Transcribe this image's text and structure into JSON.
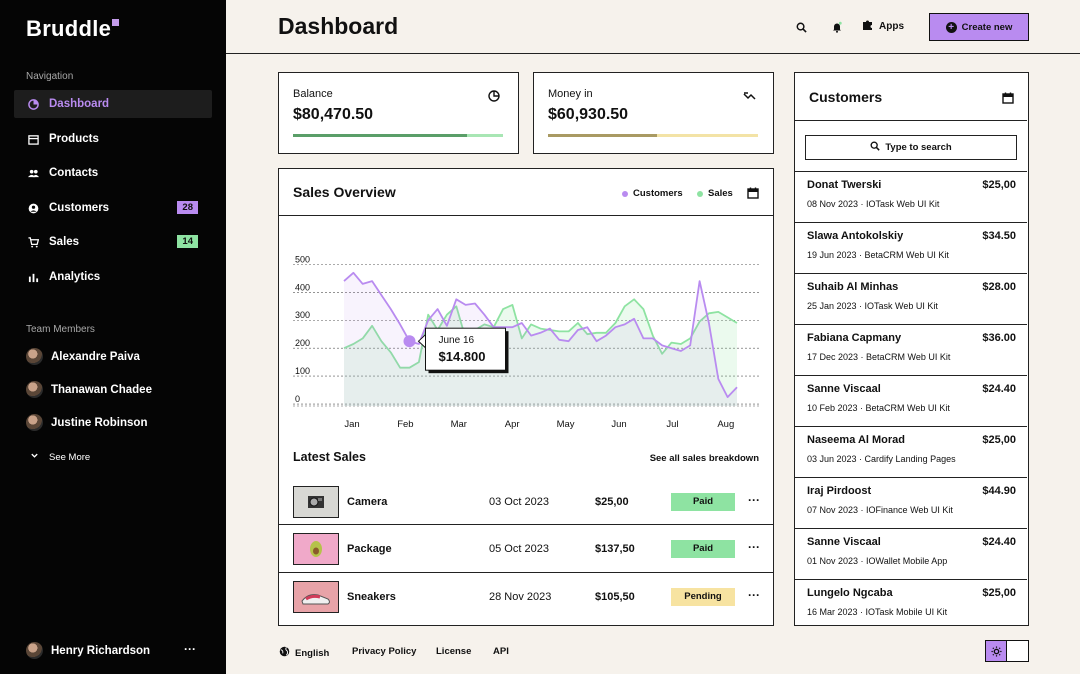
{
  "app": {
    "logo": "Bruddle"
  },
  "sidebar": {
    "nav_heading": "Navigation",
    "items": [
      {
        "label": "Dashboard",
        "icon": "dashboard-icon",
        "active": true
      },
      {
        "label": "Products",
        "icon": "products-icon"
      },
      {
        "label": "Contacts",
        "icon": "contacts-icon"
      },
      {
        "label": "Customers",
        "icon": "customers-icon",
        "badge": "28",
        "badge_color": "#b98bf0"
      },
      {
        "label": "Sales",
        "icon": "cart-icon",
        "badge": "14",
        "badge_color": "#8ee3a2"
      },
      {
        "label": "Analytics",
        "icon": "analytics-icon"
      }
    ],
    "team_heading": "Team Members",
    "members": [
      "Alexandre Paiva",
      "Thanawan Chadee",
      "Justine Robinson"
    ],
    "see_more": "See More",
    "current_user": "Henry Richardson"
  },
  "header": {
    "title": "Dashboard",
    "apps_label": "Apps",
    "create_label": "Create new"
  },
  "stats": [
    {
      "label": "Balance",
      "value": "$80,470.50",
      "icon": "pie-chart-icon",
      "progress": 0.83,
      "fill_color": "#5a9e68",
      "track_color": "#a8e6b4"
    },
    {
      "label": "Money in",
      "value": "$60,930.50",
      "icon": "trend-icon",
      "progress": 0.52,
      "fill_color": "#a99a63",
      "track_color": "#f3e3a6"
    }
  ],
  "sales_overview": {
    "title": "Sales Overview",
    "legend_customers": "Customers",
    "legend_sales": "Sales",
    "tooltip_date": "June 16",
    "tooltip_value": "$14.800"
  },
  "chart_data": {
    "type": "line",
    "yticks": [
      500,
      400,
      300,
      200,
      100,
      0
    ],
    "ylim": [
      -50,
      530
    ],
    "xticks": [
      "Jan",
      "Feb",
      "Mar",
      "Apr",
      "May",
      "Jun",
      "Jul",
      "Aug"
    ],
    "series": [
      {
        "name": "Customers",
        "color": "#b98bf0",
        "values": [
          440,
          470,
          430,
          440,
          390,
          340,
          285,
          225,
          215,
          300,
          340,
          280,
          375,
          355,
          360,
          320,
          275,
          275,
          275,
          290,
          245,
          255,
          270,
          230,
          225,
          265,
          275,
          225,
          245,
          275,
          285,
          305,
          235,
          235,
          210,
          200,
          190,
          210,
          440,
          290,
          90,
          25,
          60
        ]
      },
      {
        "name": "Sales",
        "color": "#8ee3a2",
        "values": [
          200,
          215,
          235,
          280,
          225,
          185,
          130,
          130,
          150,
          320,
          265,
          320,
          350,
          235,
          265,
          285,
          275,
          340,
          355,
          235,
          285,
          270,
          265,
          260,
          260,
          290,
          250,
          255,
          255,
          290,
          350,
          375,
          340,
          245,
          180,
          220,
          215,
          235,
          295,
          325,
          330,
          310,
          290
        ]
      }
    ]
  },
  "latest_sales": {
    "title": "Latest Sales",
    "see_all": "See all sales breakdown",
    "rows": [
      {
        "name": "Camera",
        "date": "03 Oct 2023",
        "amount": "$25,00",
        "status": "Paid",
        "status_color": "#8ee3a2",
        "thumb_color": "#d8d8d4"
      },
      {
        "name": "Package",
        "date": "05 Oct 2023",
        "amount": "$137,50",
        "status": "Paid",
        "status_color": "#8ee3a2",
        "thumb_color": "#f0a9c9"
      },
      {
        "name": "Sneakers",
        "date": "28 Nov 2023",
        "amount": "$105,50",
        "status": "Pending",
        "status_color": "#f7e3a1",
        "thumb_color": "#e8a3a8"
      }
    ]
  },
  "customers": {
    "title": "Customers",
    "search_placeholder": "Type to search",
    "rows": [
      {
        "name": "Donat Twerski",
        "amount": "$25,00",
        "date": "08 Nov 2023",
        "product": "IOTask Web UI Kit"
      },
      {
        "name": "Slawa Antokolskiy",
        "amount": "$34.50",
        "date": "19 Jun 2023",
        "product": "BetaCRM Web UI Kit"
      },
      {
        "name": "Suhaib Al Minhas",
        "amount": "$28.00",
        "date": "25 Jan 2023",
        "product": "IOTask Web UI Kit"
      },
      {
        "name": "Fabiana Capmany",
        "amount": "$36.00",
        "date": "17 Dec 2023",
        "product": "BetaCRM Web UI Kit"
      },
      {
        "name": "Sanne Viscaal",
        "amount": "$24.40",
        "date": "10 Feb 2023",
        "product": "BetaCRM Web UI Kit"
      },
      {
        "name": "Naseema Al Morad",
        "amount": "$25,00",
        "date": "03 Jun 2023",
        "product": "Cardify Landing Pages"
      },
      {
        "name": "Iraj Pirdoost",
        "amount": "$44.90",
        "date": "07 Nov 2023",
        "product": "IOFinance Web UI Kit"
      },
      {
        "name": "Sanne Viscaal",
        "amount": "$24.40",
        "date": "01 Nov 2023",
        "product": "IOWallet Mobile App"
      },
      {
        "name": "Lungelo Ngcaba",
        "amount": "$25,00",
        "date": "16 Mar 2023",
        "product": "IOTask Mobile UI Kit"
      }
    ]
  },
  "footer": {
    "language": "English",
    "privacy": "Privacy Policy",
    "license": "License",
    "api": "API"
  },
  "colors": {
    "accent": "#b98bf0",
    "green": "#8ee3a2",
    "yellow": "#f7e3a1"
  }
}
